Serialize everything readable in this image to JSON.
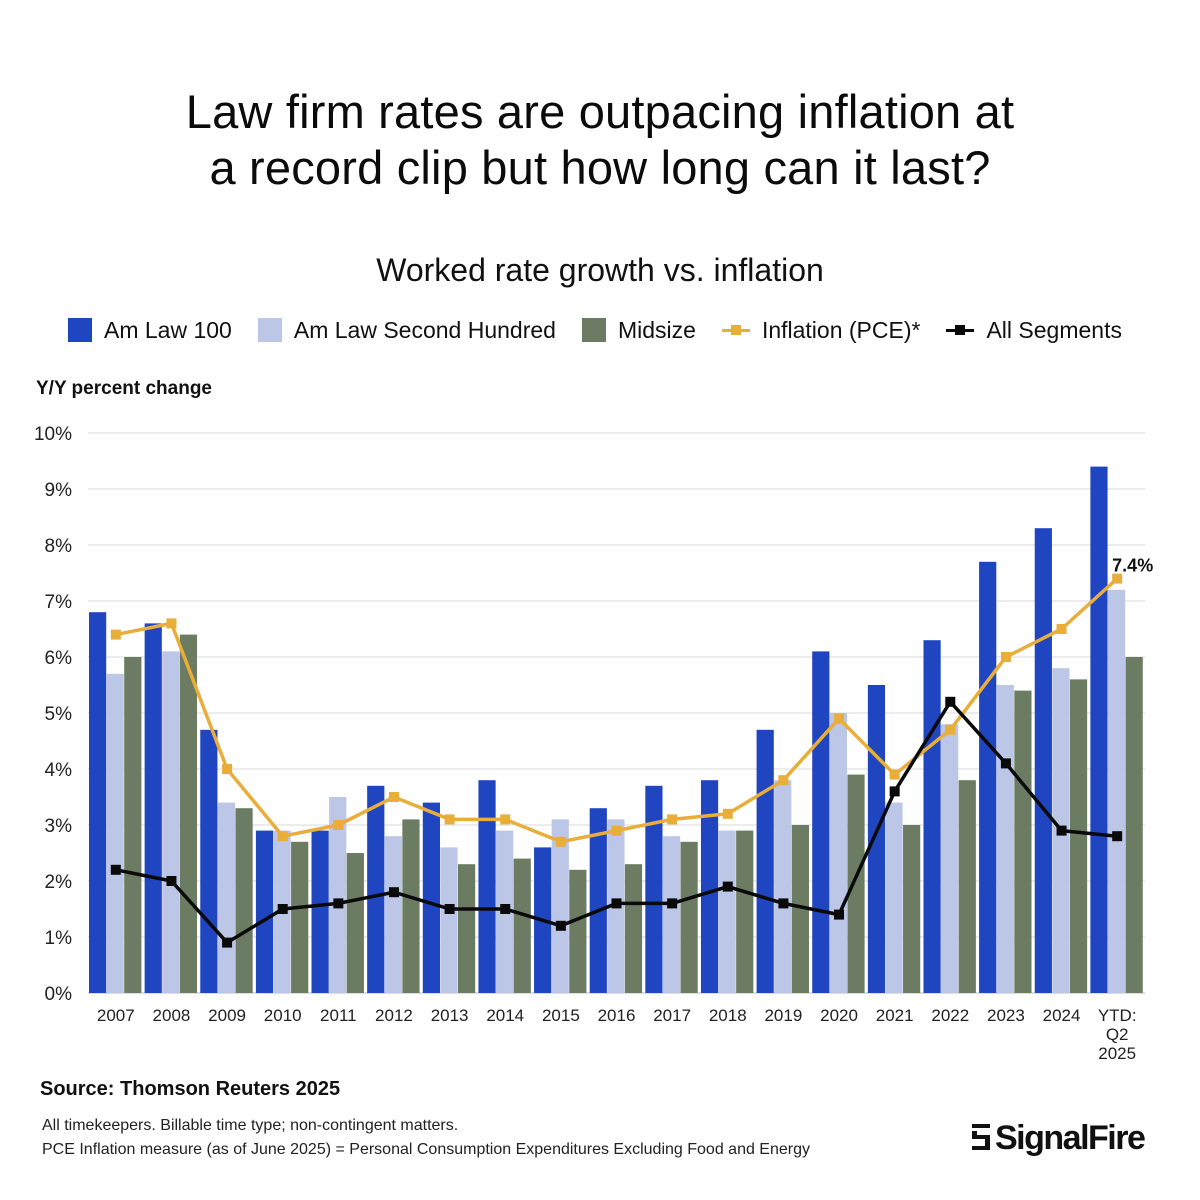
{
  "header": {
    "title_line1": "Law firm rates are outpacing inflation at",
    "title_line2": "a record clip but how long can it last?"
  },
  "footer": {
    "source": "Source: Thomson Reuters 2025",
    "note1": "All timekeepers. Billable time type; non-contingent matters.",
    "note2": "PCE Inflation measure (as of June 2025) = Personal Consumption Expenditures Excluding Food and Energy",
    "logo_text": "SignalFire",
    "logo_icon": "signalfire-logo-icon"
  },
  "colors": {
    "amlaw100": "#1f46c0",
    "second": "#bcc6e6",
    "midsize": "#6b7c62",
    "inflation": "#e9ad3a",
    "all": "#0a0a0a",
    "grid": "#d9d9d9"
  },
  "chart_data": {
    "type": "bar",
    "title": "Worked rate growth vs. inflation",
    "ylabel": "Y/Y percent change",
    "xlabel": "",
    "ylim": [
      0,
      10
    ],
    "yticks": [
      "0%",
      "1%",
      "2%",
      "3%",
      "4%",
      "5%",
      "6%",
      "7%",
      "8%",
      "9%",
      "10%"
    ],
    "grid": true,
    "legend_position": "top",
    "categories": [
      "2007",
      "2008",
      "2009",
      "2010",
      "2011",
      "2012",
      "2013",
      "2014",
      "2015",
      "2016",
      "2017",
      "2018",
      "2019",
      "2020",
      "2021",
      "2022",
      "2023",
      "2024",
      "YTD:\nQ2\n2025"
    ],
    "series": [
      {
        "name": "Am Law 100",
        "kind": "bar",
        "color_key": "amlaw100",
        "values": [
          6.8,
          6.6,
          4.7,
          2.9,
          2.9,
          3.7,
          3.4,
          3.8,
          2.6,
          3.3,
          3.7,
          3.8,
          4.7,
          6.1,
          5.5,
          6.3,
          7.7,
          8.3,
          9.4
        ]
      },
      {
        "name": "Am Law Second Hundred",
        "kind": "bar",
        "color_key": "second",
        "values": [
          5.7,
          6.1,
          3.4,
          2.9,
          3.5,
          2.8,
          2.6,
          2.9,
          3.1,
          3.1,
          2.8,
          2.9,
          3.8,
          5.0,
          3.4,
          4.8,
          5.5,
          5.8,
          7.2
        ]
      },
      {
        "name": "Midsize",
        "kind": "bar",
        "color_key": "midsize",
        "values": [
          6.0,
          6.4,
          3.3,
          2.7,
          2.5,
          3.1,
          2.3,
          2.4,
          2.2,
          2.3,
          2.7,
          2.9,
          3.0,
          3.9,
          3.0,
          3.8,
          5.4,
          5.6,
          6.0
        ]
      },
      {
        "name": "Inflation (PCE)*",
        "kind": "line",
        "color_key": "inflation",
        "values": [
          6.4,
          6.6,
          4.0,
          2.8,
          3.0,
          3.5,
          3.1,
          3.1,
          2.7,
          2.9,
          3.1,
          3.2,
          3.8,
          4.9,
          3.9,
          4.7,
          6.0,
          6.5,
          7.4
        ]
      },
      {
        "name": "All Segments",
        "kind": "line",
        "color_key": "all",
        "values": [
          2.2,
          2.0,
          0.9,
          1.5,
          1.6,
          1.8,
          1.5,
          1.5,
          1.2,
          1.6,
          1.6,
          1.9,
          1.6,
          1.4,
          3.6,
          5.2,
          4.1,
          2.9,
          2.8
        ]
      }
    ],
    "annotations": [
      {
        "text": "7.4%",
        "series": "Inflation (PCE)*",
        "category_index": 18
      }
    ]
  }
}
